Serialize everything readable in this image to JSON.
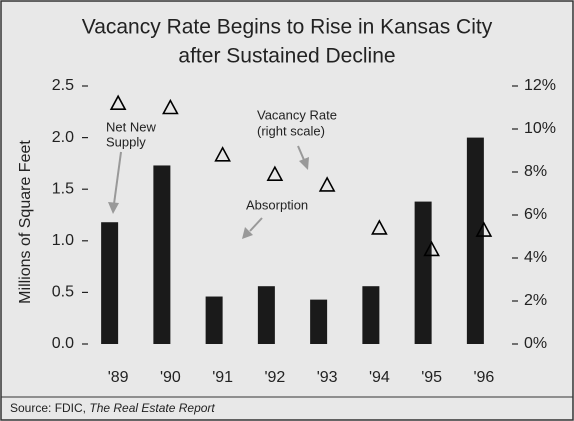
{
  "chart_data": {
    "type": "bar",
    "title": [
      "Vacancy Rate Begins to Rise in Kansas City",
      "after Sustained Decline"
    ],
    "categories": [
      "'89",
      "'90",
      "'91",
      "'92",
      "'93",
      "'94",
      "'95",
      "'96"
    ],
    "series": [
      {
        "type": "bar",
        "color": "#1a1a1a",
        "values": [
          1.18,
          1.73,
          0.46,
          0.56,
          0.43,
          0.56,
          1.38,
          2.0
        ]
      },
      {
        "type": "triangle",
        "color": "#000000",
        "axis": "y2",
        "values": [
          11.2,
          11.0,
          8.8,
          7.9,
          7.4,
          5.4,
          4.4,
          5.3
        ]
      }
    ],
    "ylabel": "Millions of Square Feet",
    "ylim": [
      0,
      2.5
    ],
    "yticks": [
      {
        "value": 0,
        "label": "0.0"
      },
      0.5,
      {
        "value": 1,
        "label": "1.0"
      },
      1.5,
      {
        "value": 2,
        "label": "2.0"
      },
      2.5
    ],
    "y2lim": [
      0,
      12
    ],
    "y2ticks": [
      {
        "value": 0,
        "label": "0%"
      },
      {
        "value": 2,
        "label": "2%"
      },
      {
        "value": 4,
        "label": "4%"
      },
      {
        "value": 6,
        "label": "6%"
      },
      {
        "value": 8,
        "label": "8%"
      },
      {
        "value": 10,
        "label": "10%"
      },
      {
        "value": 12,
        "label": "12%"
      }
    ],
    "annotations": [
      [
        "Net New",
        "Supply"
      ],
      [
        "Vacancy Rate",
        "(right scale)"
      ],
      [
        "Absorption"
      ]
    ],
    "source": [
      "Source: FDIC, ",
      "The Real Estate Report"
    ]
  }
}
